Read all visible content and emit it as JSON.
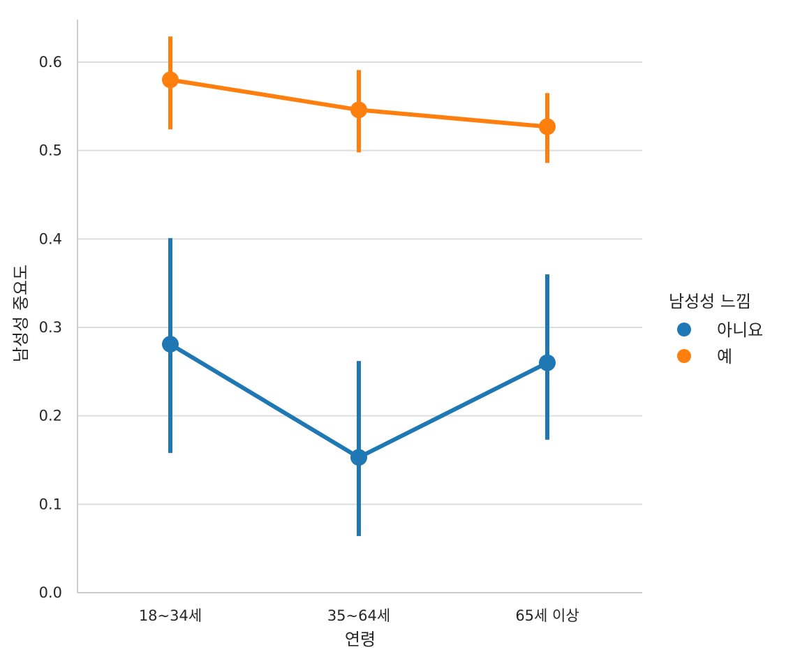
{
  "chart_data": {
    "type": "line",
    "xlabel": "연령",
    "ylabel": "남성성 중요도",
    "categories": [
      "18~34세",
      "35~64세",
      "65세 이상"
    ],
    "ylim": [
      0,
      0.65
    ],
    "yticks": [
      "0.0",
      "0.1",
      "0.2",
      "0.3",
      "0.4",
      "0.5",
      "0.6"
    ],
    "grid": "horizontal",
    "legend": {
      "title": "남성성 느낌",
      "placement": "right"
    },
    "series": [
      {
        "name": "아니요",
        "color": "#1f77b4",
        "values": [
          0.281,
          0.153,
          0.26
        ],
        "ci_low": [
          0.158,
          0.064,
          0.173
        ],
        "ci_high": [
          0.401,
          0.262,
          0.36
        ]
      },
      {
        "name": "예",
        "color": "#ff7f0e",
        "values": [
          0.58,
          0.546,
          0.527
        ],
        "ci_low": [
          0.524,
          0.498,
          0.486
        ],
        "ci_high": [
          0.629,
          0.591,
          0.565
        ]
      }
    ]
  }
}
